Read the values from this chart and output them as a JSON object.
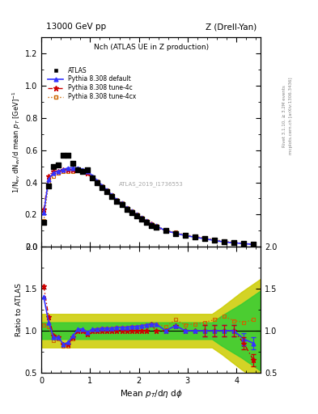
{
  "title_left": "13000 GeV pp",
  "title_right": "Z (Drell-Yan)",
  "plot_title": "Nch (ATLAS UE in Z production)",
  "xlabel": "Mean $p_T$/d$\\eta$ d$\\phi$",
  "ylabel_main": "1/N$_{ev}$ dN$_{ev}$/d mean $p_T$ [GeV]$^{-1}$",
  "ylabel_ratio": "Ratio to ATLAS",
  "watermark": "ATLAS_2019_I1736553",
  "right_label_top": "Rivet 3.1.10, ≥ 3.2M events",
  "right_label_bot": "mcplots.cern.ch [arXiv:1306.3436]",
  "xlim": [
    0,
    4.5
  ],
  "ylim_main": [
    0,
    1.3
  ],
  "ylim_ratio": [
    0.5,
    2.0
  ],
  "atlas_x": [
    0.05,
    0.15,
    0.25,
    0.35,
    0.45,
    0.55,
    0.65,
    0.75,
    0.85,
    0.95,
    1.05,
    1.15,
    1.25,
    1.35,
    1.45,
    1.55,
    1.65,
    1.75,
    1.85,
    1.95,
    2.05,
    2.15,
    2.25,
    2.35,
    2.55,
    2.75,
    2.95,
    3.15,
    3.35,
    3.55,
    3.75,
    3.95,
    4.15,
    4.35
  ],
  "atlas_y": [
    0.15,
    0.38,
    0.5,
    0.51,
    0.57,
    0.57,
    0.52,
    0.48,
    0.47,
    0.48,
    0.43,
    0.4,
    0.37,
    0.34,
    0.31,
    0.28,
    0.26,
    0.23,
    0.21,
    0.19,
    0.17,
    0.15,
    0.13,
    0.12,
    0.1,
    0.08,
    0.07,
    0.06,
    0.05,
    0.04,
    0.03,
    0.025,
    0.02,
    0.015
  ],
  "pythia_default_x": [
    0.05,
    0.15,
    0.25,
    0.35,
    0.45,
    0.55,
    0.65,
    0.75,
    0.85,
    0.95,
    1.05,
    1.15,
    1.25,
    1.35,
    1.45,
    1.55,
    1.65,
    1.75,
    1.85,
    1.95,
    2.05,
    2.15,
    2.25,
    2.35,
    2.55,
    2.75,
    2.95,
    3.15,
    3.35,
    3.55,
    3.75,
    3.95,
    4.15,
    4.35
  ],
  "pythia_default_y": [
    0.21,
    0.42,
    0.46,
    0.47,
    0.48,
    0.49,
    0.49,
    0.49,
    0.48,
    0.47,
    0.44,
    0.41,
    0.38,
    0.35,
    0.32,
    0.29,
    0.27,
    0.24,
    0.22,
    0.2,
    0.18,
    0.16,
    0.14,
    0.13,
    0.1,
    0.085,
    0.07,
    0.06,
    0.05,
    0.04,
    0.03,
    0.025,
    0.02,
    0.015
  ],
  "pythia_4c_x": [
    0.05,
    0.15,
    0.25,
    0.35,
    0.45,
    0.55,
    0.65,
    0.75,
    0.85,
    0.95,
    1.05,
    1.15,
    1.25,
    1.35,
    1.45,
    1.55,
    1.65,
    1.75,
    1.85,
    1.95,
    2.05,
    2.15,
    2.25,
    2.35,
    2.55,
    2.75,
    2.95,
    3.15,
    3.35,
    3.55,
    3.75,
    3.95,
    4.15,
    4.35
  ],
  "pythia_4c_y": [
    0.23,
    0.44,
    0.47,
    0.47,
    0.48,
    0.48,
    0.48,
    0.48,
    0.47,
    0.46,
    0.43,
    0.4,
    0.37,
    0.34,
    0.31,
    0.28,
    0.26,
    0.23,
    0.21,
    0.19,
    0.17,
    0.15,
    0.14,
    0.12,
    0.1,
    0.085,
    0.07,
    0.06,
    0.05,
    0.04,
    0.03,
    0.025,
    0.02,
    0.015
  ],
  "pythia_4cx_x": [
    0.05,
    0.15,
    0.25,
    0.35,
    0.45,
    0.55,
    0.65,
    0.75,
    0.85,
    0.95,
    1.05,
    1.15,
    1.25,
    1.35,
    1.45,
    1.55,
    1.65,
    1.75,
    1.85,
    1.95,
    2.05,
    2.15,
    2.25,
    2.35,
    2.55,
    2.75,
    2.95,
    3.15,
    3.35,
    3.55,
    3.75,
    3.95,
    4.15,
    4.35
  ],
  "pythia_4cx_y": [
    0.16,
    0.4,
    0.44,
    0.46,
    0.47,
    0.47,
    0.47,
    0.48,
    0.47,
    0.46,
    0.43,
    0.41,
    0.38,
    0.35,
    0.32,
    0.29,
    0.27,
    0.24,
    0.22,
    0.2,
    0.18,
    0.16,
    0.14,
    0.13,
    0.105,
    0.09,
    0.075,
    0.065,
    0.055,
    0.045,
    0.035,
    0.028,
    0.022,
    0.017
  ],
  "ratio_default_y": [
    1.4,
    1.1,
    0.92,
    0.92,
    0.84,
    0.86,
    0.94,
    1.02,
    1.02,
    0.98,
    1.02,
    1.02,
    1.03,
    1.03,
    1.03,
    1.04,
    1.04,
    1.04,
    1.05,
    1.05,
    1.06,
    1.07,
    1.08,
    1.08,
    1.0,
    1.06,
    1.0,
    1.0,
    1.0,
    1.0,
    1.0,
    1.0,
    0.9,
    0.85
  ],
  "ratio_4c_y": [
    1.53,
    1.16,
    0.94,
    0.92,
    0.84,
    0.84,
    0.92,
    1.0,
    1.0,
    0.96,
    1.0,
    1.0,
    1.0,
    1.0,
    1.0,
    1.0,
    1.0,
    1.0,
    1.0,
    1.0,
    1.0,
    1.0,
    1.08,
    1.0,
    1.0,
    1.06,
    1.0,
    1.0,
    1.0,
    1.0,
    1.0,
    1.0,
    0.85,
    0.65
  ],
  "ratio_4cx_y": [
    1.07,
    1.05,
    0.88,
    0.9,
    0.82,
    0.82,
    0.9,
    1.0,
    1.0,
    0.96,
    1.0,
    1.02,
    1.03,
    1.03,
    1.03,
    1.04,
    1.04,
    1.04,
    1.05,
    1.05,
    1.06,
    1.07,
    1.08,
    1.08,
    1.05,
    1.13,
    1.07,
    1.08,
    1.1,
    1.13,
    1.17,
    1.12,
    1.1,
    1.13
  ],
  "green_band_x": [
    0.0,
    3.5,
    3.5,
    3.7,
    3.9,
    4.1,
    4.3,
    4.5
  ],
  "green_band_lo": [
    0.9,
    0.9,
    0.9,
    0.82,
    0.75,
    0.68,
    0.6,
    0.52
  ],
  "green_band_hi": [
    1.1,
    1.1,
    1.1,
    1.18,
    1.25,
    1.32,
    1.4,
    1.48
  ],
  "yellow_band_x": [
    0.0,
    3.5,
    3.5,
    3.7,
    3.9,
    4.1,
    4.3,
    4.5
  ],
  "yellow_band_lo": [
    0.8,
    0.8,
    0.8,
    0.72,
    0.63,
    0.54,
    0.46,
    0.38
  ],
  "yellow_band_hi": [
    1.2,
    1.2,
    1.2,
    1.28,
    1.37,
    1.46,
    1.54,
    1.62
  ],
  "color_default": "#3333ff",
  "color_4c": "#cc0000",
  "color_4cx": "#cc6600",
  "color_atlas": "#000000",
  "color_green": "#33cc33",
  "color_yellow": "#cccc00",
  "legend_entries": [
    "ATLAS",
    "Pythia 8.308 default",
    "Pythia 8.308 tune-4c",
    "Pythia 8.308 tune-4cx"
  ]
}
